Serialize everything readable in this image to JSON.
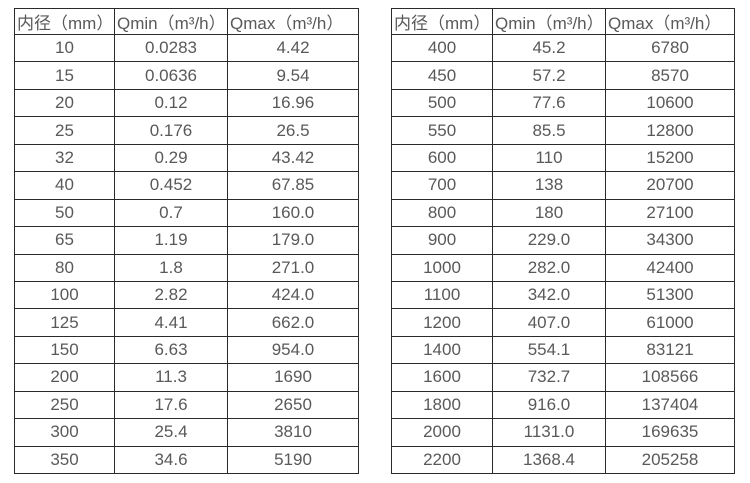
{
  "colors": {
    "background": "#ffffff",
    "border": "#2a2a2a",
    "text": "#595959"
  },
  "tables": [
    {
      "name": "flow-spec-table-small-diameters",
      "headers": [
        "内径（mm）",
        "Qmin（m³/h）",
        "Qmax（m³/h）"
      ],
      "rows": [
        [
          "10",
          "0.0283",
          "4.42"
        ],
        [
          "15",
          "0.0636",
          "9.54"
        ],
        [
          "20",
          "0.12",
          "16.96"
        ],
        [
          "25",
          "0.176",
          "26.5"
        ],
        [
          "32",
          "0.29",
          "43.42"
        ],
        [
          "40",
          "0.452",
          "67.85"
        ],
        [
          "50",
          "0.7",
          "160.0"
        ],
        [
          "65",
          "1.19",
          "179.0"
        ],
        [
          "80",
          "1.8",
          "271.0"
        ],
        [
          "100",
          "2.82",
          "424.0"
        ],
        [
          "125",
          "4.41",
          "662.0"
        ],
        [
          "150",
          "6.63",
          "954.0"
        ],
        [
          "200",
          "11.3",
          "1690"
        ],
        [
          "250",
          "17.6",
          "2650"
        ],
        [
          "300",
          "25.4",
          "3810"
        ],
        [
          "350",
          "34.6",
          "5190"
        ]
      ]
    },
    {
      "name": "flow-spec-table-large-diameters",
      "headers": [
        "内径（mm）",
        "Qmin（m³/h）",
        "Qmax（m³/h）"
      ],
      "rows": [
        [
          "400",
          "45.2",
          "6780"
        ],
        [
          "450",
          "57.2",
          "8570"
        ],
        [
          "500",
          "77.6",
          "10600"
        ],
        [
          "550",
          "85.5",
          "12800"
        ],
        [
          "600",
          "110",
          "15200"
        ],
        [
          "700",
          "138",
          "20700"
        ],
        [
          "800",
          "180",
          "27100"
        ],
        [
          "900",
          "229.0",
          "34300"
        ],
        [
          "1000",
          "282.0",
          "42400"
        ],
        [
          "1100",
          "342.0",
          "51300"
        ],
        [
          "1200",
          "407.0",
          "61000"
        ],
        [
          "1400",
          "554.1",
          "83121"
        ],
        [
          "1600",
          "732.7",
          "108566"
        ],
        [
          "1800",
          "916.0",
          "137404"
        ],
        [
          "2000",
          "1131.0",
          "169635"
        ],
        [
          "2200",
          "1368.4",
          "205258"
        ]
      ]
    }
  ],
  "chart_data": [
    {
      "type": "table",
      "title": "",
      "columns": [
        "内径（mm）",
        "Qmin（m³/h）",
        "Qmax（m³/h）"
      ],
      "rows": [
        [
          10,
          0.0283,
          4.42
        ],
        [
          15,
          0.0636,
          9.54
        ],
        [
          20,
          0.12,
          16.96
        ],
        [
          25,
          0.176,
          26.5
        ],
        [
          32,
          0.29,
          43.42
        ],
        [
          40,
          0.452,
          67.85
        ],
        [
          50,
          0.7,
          160.0
        ],
        [
          65,
          1.19,
          179.0
        ],
        [
          80,
          1.8,
          271.0
        ],
        [
          100,
          2.82,
          424.0
        ],
        [
          125,
          4.41,
          662.0
        ],
        [
          150,
          6.63,
          954.0
        ],
        [
          200,
          11.3,
          1690
        ],
        [
          250,
          17.6,
          2650
        ],
        [
          300,
          25.4,
          3810
        ],
        [
          350,
          34.6,
          5190
        ]
      ]
    },
    {
      "type": "table",
      "title": "",
      "columns": [
        "内径（mm）",
        "Qmin（m³/h）",
        "Qmax（m³/h）"
      ],
      "rows": [
        [
          400,
          45.2,
          6780
        ],
        [
          450,
          57.2,
          8570
        ],
        [
          500,
          77.6,
          10600
        ],
        [
          550,
          85.5,
          12800
        ],
        [
          600,
          110,
          15200
        ],
        [
          700,
          138,
          20700
        ],
        [
          800,
          180,
          27100
        ],
        [
          900,
          229.0,
          34300
        ],
        [
          1000,
          282.0,
          42400
        ],
        [
          1100,
          342.0,
          51300
        ],
        [
          1200,
          407.0,
          61000
        ],
        [
          1400,
          554.1,
          83121
        ],
        [
          1600,
          732.7,
          108566
        ],
        [
          1800,
          916.0,
          137404
        ],
        [
          2000,
          1131.0,
          169635
        ],
        [
          2200,
          1368.4,
          205258
        ]
      ]
    }
  ]
}
